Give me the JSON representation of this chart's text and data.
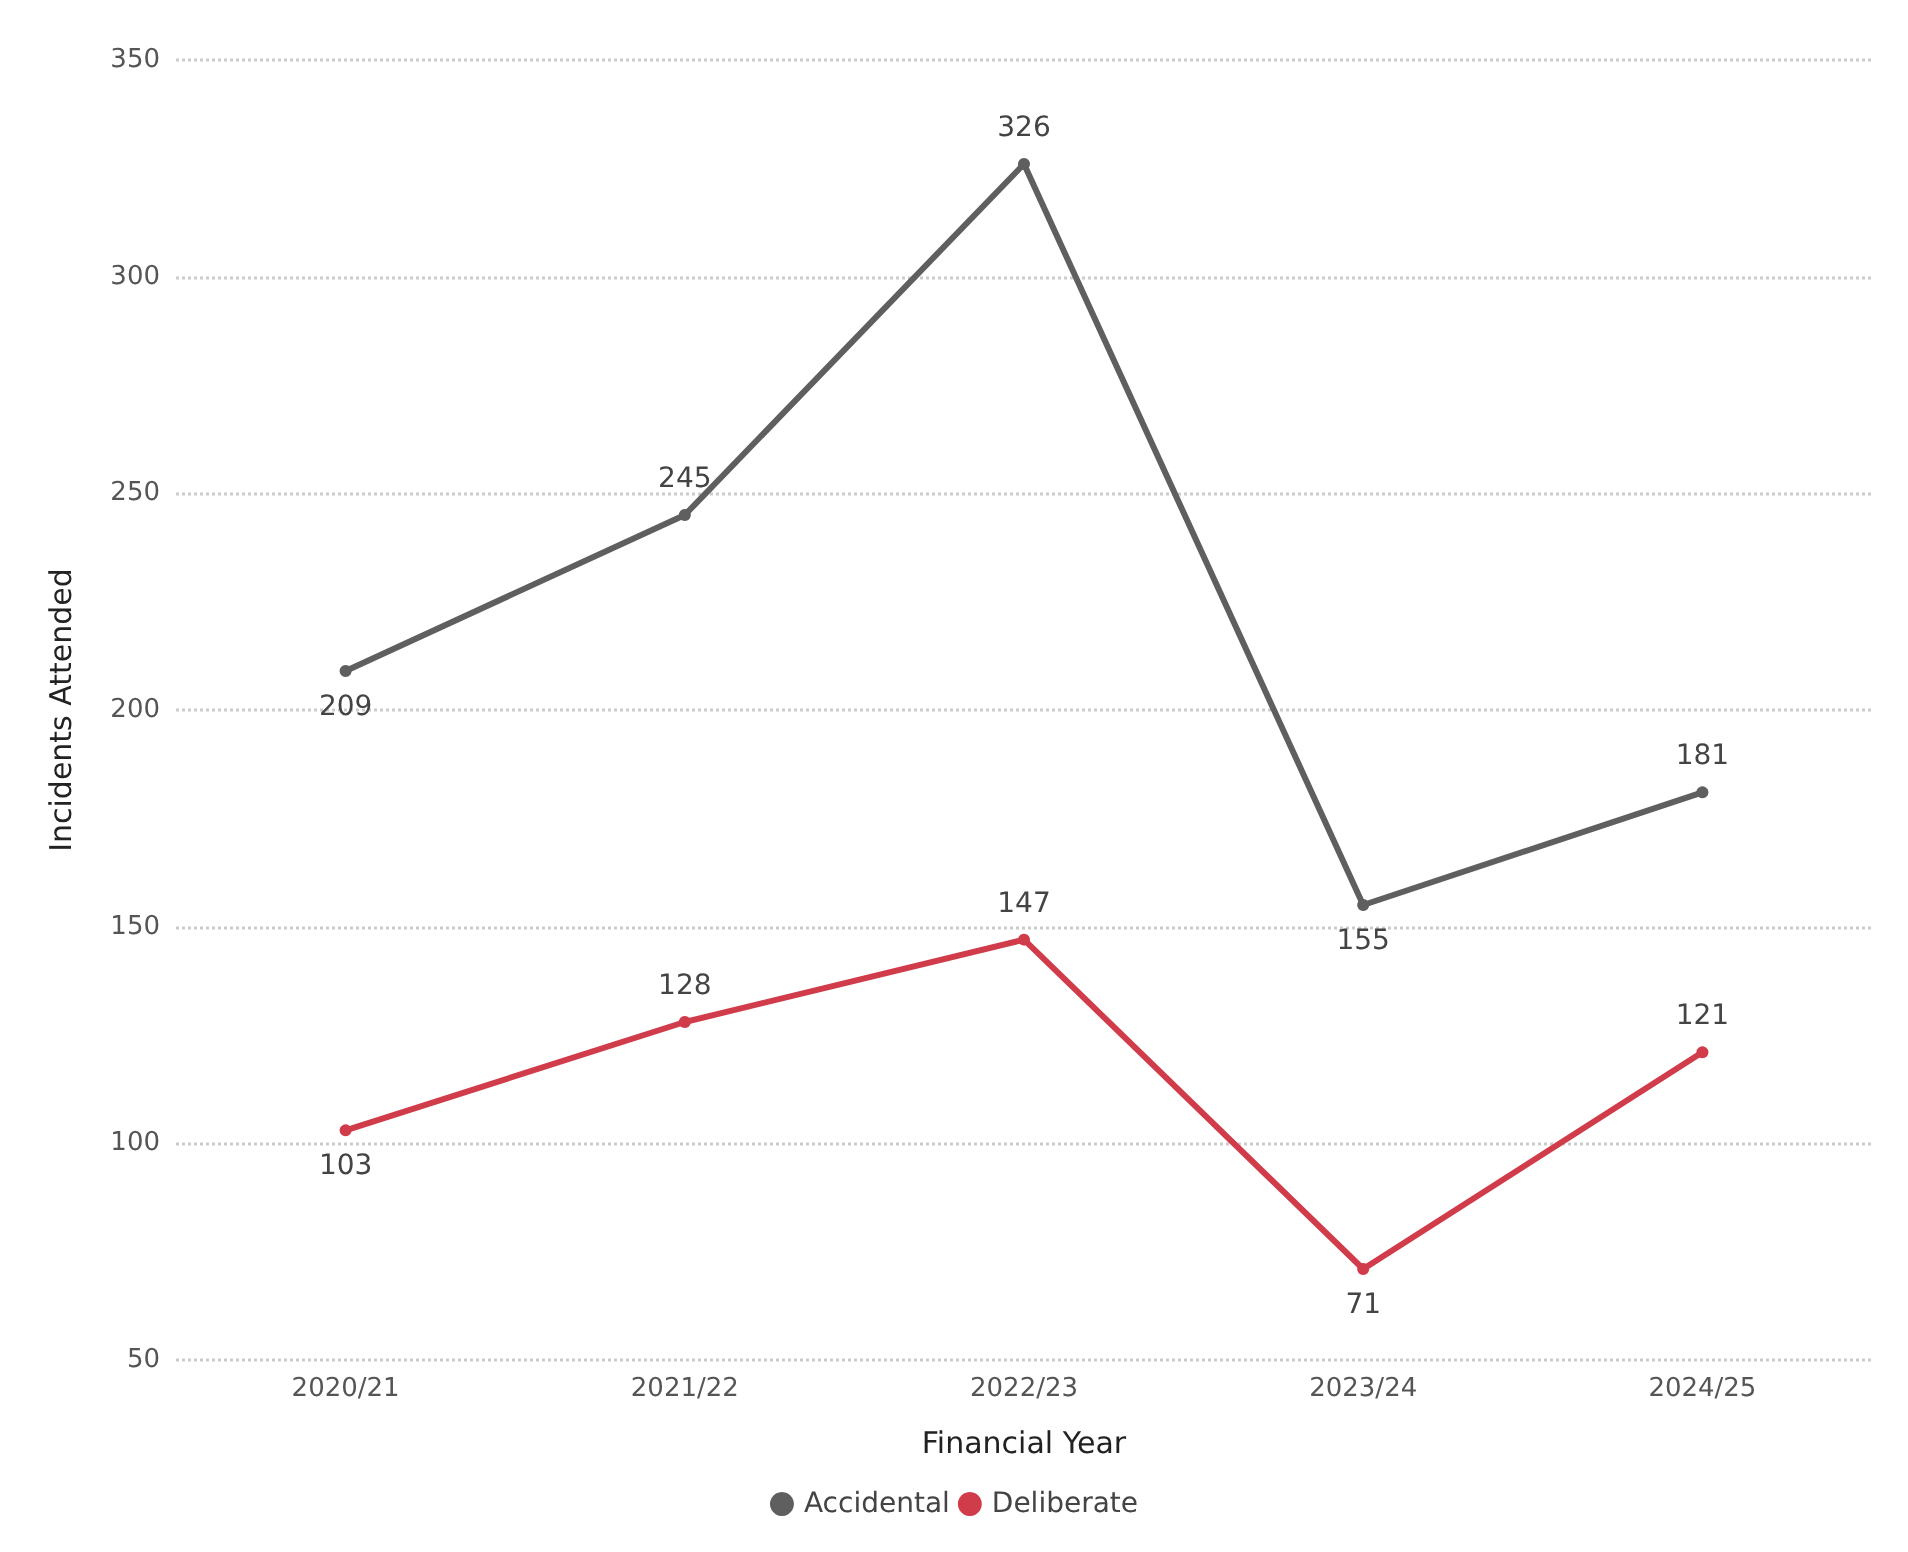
{
  "chart_data": {
    "type": "line",
    "xlabel": "Financial Year",
    "ylabel": "Incidents Attended",
    "categories": [
      "2020/21",
      "2021/22",
      "2022/23",
      "2023/24",
      "2024/25"
    ],
    "series": [
      {
        "name": "Accidental",
        "color": "#5f5f5f",
        "values": [
          209,
          245,
          326,
          155,
          181
        ]
      },
      {
        "name": "Deliberate",
        "color": "#d13c4b",
        "values": [
          103,
          128,
          147,
          71,
          121
        ]
      }
    ],
    "ylim": [
      50,
      350
    ],
    "yticks": [
      50,
      100,
      150,
      200,
      250,
      300,
      350
    ],
    "grid": "y",
    "legend": "bottom",
    "marker": "circle",
    "line_style": "solid",
    "data_labels": true
  }
}
